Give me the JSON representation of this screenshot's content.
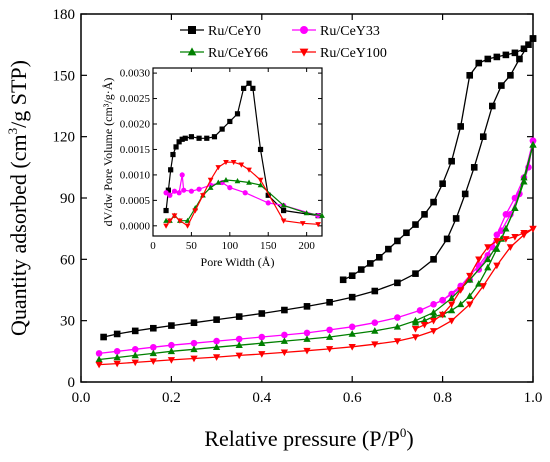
{
  "chart_data": [
    {
      "type": "line",
      "xlabel": "Relative pressure (P/P",
      "xlabel_sup": "0",
      "xlabel_close": ")",
      "ylabel": "Quantity adsorbed (cm",
      "ylabel_sup": "3",
      "ylabel_close": "/g STP)",
      "xlim": [
        0.0,
        1.0
      ],
      "ylim": [
        0,
        180
      ],
      "xticks": [
        "0.0",
        "0.2",
        "0.4",
        "0.6",
        "0.8",
        "1.0"
      ],
      "yticks": [
        "0",
        "30",
        "60",
        "90",
        "120",
        "150",
        "180"
      ],
      "legend_placement": "top-center",
      "series": [
        {
          "name": "Ru/CeY0",
          "color": "#000000",
          "marker": "square",
          "adsorption": [
            [
              0.05,
              22
            ],
            [
              0.08,
              23.5
            ],
            [
              0.12,
              25
            ],
            [
              0.16,
              26.3
            ],
            [
              0.2,
              27.6
            ],
            [
              0.25,
              29
            ],
            [
              0.3,
              30.5
            ],
            [
              0.35,
              32
            ],
            [
              0.4,
              33.5
            ],
            [
              0.45,
              35.2
            ],
            [
              0.5,
              37
            ],
            [
              0.55,
              39
            ],
            [
              0.6,
              41.5
            ],
            [
              0.65,
              44.5
            ],
            [
              0.7,
              48.5
            ],
            [
              0.74,
              53
            ],
            [
              0.78,
              60
            ],
            [
              0.81,
              70
            ],
            [
              0.83,
              80
            ],
            [
              0.85,
              92
            ],
            [
              0.87,
              105
            ],
            [
              0.89,
              120
            ],
            [
              0.91,
              135
            ],
            [
              0.93,
              145
            ],
            [
              0.95,
              150
            ],
            [
              0.97,
              158
            ],
            [
              0.99,
              165
            ],
            [
              1.0,
              168
            ]
          ],
          "desorption": [
            [
              1.0,
              168
            ],
            [
              0.98,
              163
            ],
            [
              0.96,
              161
            ],
            [
              0.94,
              160
            ],
            [
              0.92,
              159
            ],
            [
              0.9,
              158
            ],
            [
              0.88,
              156
            ],
            [
              0.86,
              150
            ],
            [
              0.84,
              125
            ],
            [
              0.82,
              108
            ],
            [
              0.8,
              97
            ],
            [
              0.78,
              88
            ],
            [
              0.76,
              82
            ],
            [
              0.74,
              77
            ],
            [
              0.72,
              73
            ],
            [
              0.7,
              69
            ],
            [
              0.68,
              65
            ],
            [
              0.66,
              61
            ],
            [
              0.64,
              58
            ],
            [
              0.62,
              55
            ],
            [
              0.6,
              52
            ],
            [
              0.58,
              50
            ]
          ]
        },
        {
          "name": "Ru/CeY33",
          "color": "#ff00ff",
          "marker": "circle",
          "adsorption": [
            [
              0.04,
              14
            ],
            [
              0.08,
              15
            ],
            [
              0.12,
              16
            ],
            [
              0.16,
              17
            ],
            [
              0.2,
              18
            ],
            [
              0.25,
              19
            ],
            [
              0.3,
              20
            ],
            [
              0.35,
              21
            ],
            [
              0.4,
              22
            ],
            [
              0.45,
              23
            ],
            [
              0.5,
              24
            ],
            [
              0.55,
              25.5
            ],
            [
              0.6,
              27
            ],
            [
              0.65,
              29
            ],
            [
              0.7,
              31.5
            ],
            [
              0.75,
              35
            ],
            [
              0.8,
              40
            ],
            [
              0.84,
              47
            ],
            [
              0.88,
              57
            ],
            [
              0.91,
              66
            ],
            [
              0.93,
              74
            ],
            [
              0.95,
              82
            ],
            [
              0.97,
              92
            ],
            [
              0.99,
              105
            ],
            [
              1.0,
              118
            ]
          ],
          "desorption": [
            [
              1.0,
              118
            ],
            [
              0.98,
              100
            ],
            [
              0.96,
              90
            ],
            [
              0.94,
              82
            ],
            [
              0.92,
              72
            ],
            [
              0.9,
              62
            ],
            [
              0.88,
              55
            ],
            [
              0.86,
              50
            ],
            [
              0.84,
              46
            ],
            [
              0.82,
              43
            ],
            [
              0.8,
              40
            ],
            [
              0.78,
              38
            ]
          ]
        },
        {
          "name": "Ru/CeY66",
          "color": "#008000",
          "marker": "triangle-up",
          "adsorption": [
            [
              0.04,
              11
            ],
            [
              0.08,
              12
            ],
            [
              0.12,
              13
            ],
            [
              0.16,
              14
            ],
            [
              0.2,
              15
            ],
            [
              0.25,
              16
            ],
            [
              0.3,
              17
            ],
            [
              0.35,
              18
            ],
            [
              0.4,
              19
            ],
            [
              0.45,
              20
            ],
            [
              0.5,
              21
            ],
            [
              0.55,
              22
            ],
            [
              0.6,
              23.5
            ],
            [
              0.65,
              25
            ],
            [
              0.7,
              27
            ],
            [
              0.74,
              30
            ],
            [
              0.78,
              34
            ],
            [
              0.82,
              41
            ],
            [
              0.86,
              50
            ],
            [
              0.9,
              60
            ],
            [
              0.93,
              70
            ],
            [
              0.96,
              85
            ],
            [
              0.98,
              100
            ],
            [
              1.0,
              116
            ]
          ],
          "desorption": [
            [
              1.0,
              116
            ],
            [
              0.98,
              98
            ],
            [
              0.96,
              85
            ],
            [
              0.94,
              75
            ],
            [
              0.92,
              65
            ],
            [
              0.9,
              56
            ],
            [
              0.88,
              48
            ],
            [
              0.86,
              42
            ],
            [
              0.84,
              38
            ],
            [
              0.82,
              35
            ],
            [
              0.8,
              33
            ],
            [
              0.78,
              32
            ],
            [
              0.76,
              30
            ],
            [
              0.74,
              29
            ]
          ]
        },
        {
          "name": "Ru/CeY100",
          "color": "#ff0000",
          "marker": "triangle-down",
          "adsorption": [
            [
              0.04,
              8.5
            ],
            [
              0.08,
              9
            ],
            [
              0.12,
              9.6
            ],
            [
              0.16,
              10.2
            ],
            [
              0.2,
              10.8
            ],
            [
              0.25,
              11.5
            ],
            [
              0.3,
              12.2
            ],
            [
              0.35,
              13
            ],
            [
              0.4,
              13.7
            ],
            [
              0.45,
              14.5
            ],
            [
              0.5,
              15.3
            ],
            [
              0.55,
              16.2
            ],
            [
              0.6,
              17.2
            ],
            [
              0.65,
              18.5
            ],
            [
              0.7,
              20
            ],
            [
              0.74,
              22
            ],
            [
              0.78,
              25
            ],
            [
              0.82,
              30
            ],
            [
              0.86,
              38
            ],
            [
              0.89,
              47
            ],
            [
              0.92,
              57
            ],
            [
              0.95,
              66
            ],
            [
              0.98,
              72
            ],
            [
              1.0,
              75
            ]
          ],
          "desorption": [
            [
              1.0,
              75
            ],
            [
              0.98,
              73
            ],
            [
              0.96,
              71
            ],
            [
              0.94,
              70
            ],
            [
              0.92,
              69
            ],
            [
              0.9,
              66
            ],
            [
              0.88,
              60
            ],
            [
              0.86,
              52
            ],
            [
              0.84,
              45
            ],
            [
              0.82,
              38
            ],
            [
              0.8,
              33
            ],
            [
              0.78,
              30
            ],
            [
              0.76,
              28
            ],
            [
              0.74,
              26
            ]
          ]
        }
      ]
    },
    {
      "type": "line",
      "xlabel": "Pore Width (Å)",
      "ylabel": "dV/dw Pore Volume (cm³/g·Å)",
      "xlim": [
        0,
        220
      ],
      "ylim": [
        -0.0002,
        0.0031
      ],
      "xticks": [
        "0",
        "50",
        "100",
        "150",
        "200"
      ],
      "yticks": [
        "0.0000",
        "0.0005",
        "0.0010",
        "0.0015",
        "0.0020",
        "0.0025",
        "0.0030"
      ],
      "series": [
        {
          "name": "Ru/CeY0",
          "color": "#000000",
          "marker": "square",
          "points": [
            [
              17,
              0.0003
            ],
            [
              20,
              0.0007
            ],
            [
              23,
              0.0011
            ],
            [
              26,
              0.0014
            ],
            [
              30,
              0.00155
            ],
            [
              34,
              0.00165
            ],
            [
              38,
              0.0017
            ],
            [
              42,
              0.00172
            ],
            [
              50,
              0.00175
            ],
            [
              60,
              0.00172
            ],
            [
              70,
              0.00172
            ],
            [
              80,
              0.00175
            ],
            [
              90,
              0.0019
            ],
            [
              100,
              0.00205
            ],
            [
              110,
              0.0022
            ],
            [
              118,
              0.0027
            ],
            [
              125,
              0.0028
            ],
            [
              130,
              0.0027
            ],
            [
              140,
              0.0015
            ],
            [
              150,
              0.0006
            ],
            [
              170,
              0.0003
            ],
            [
              215,
              0.0002
            ]
          ]
        },
        {
          "name": "Ru/CeY33",
          "color": "#ff00ff",
          "marker": "circle",
          "points": [
            [
              17,
              0.00065
            ],
            [
              22,
              0.0006
            ],
            [
              28,
              0.00068
            ],
            [
              34,
              0.00065
            ],
            [
              38,
              0.001
            ],
            [
              40,
              0.0007
            ],
            [
              50,
              0.00068
            ],
            [
              60,
              0.00072
            ],
            [
              75,
              0.0008
            ],
            [
              90,
              0.00085
            ],
            [
              100,
              0.00075
            ],
            [
              120,
              0.00065
            ],
            [
              150,
              0.00045
            ],
            [
              170,
              0.0004
            ],
            [
              215,
              0.0002
            ]
          ]
        },
        {
          "name": "Ru/CeY66",
          "color": "#008000",
          "marker": "triangle-up",
          "points": [
            [
              17,
              0.0001
            ],
            [
              22,
              0.0001
            ],
            [
              28,
              0.0002
            ],
            [
              35,
              0.0001
            ],
            [
              45,
              0.0001
            ],
            [
              55,
              0.00035
            ],
            [
              65,
              0.0006
            ],
            [
              75,
              0.00075
            ],
            [
              85,
              0.00085
            ],
            [
              95,
              0.0009
            ],
            [
              110,
              0.00088
            ],
            [
              125,
              0.00085
            ],
            [
              140,
              0.0008
            ],
            [
              170,
              0.0004
            ],
            [
              200,
              0.00025
            ],
            [
              220,
              0.0002
            ]
          ]
        },
        {
          "name": "Ru/CeY100",
          "color": "#ff0000",
          "marker": "triangle-down",
          "points": [
            [
              17,
              0.0
            ],
            [
              22,
              0.0001
            ],
            [
              28,
              0.0002
            ],
            [
              35,
              0.0001
            ],
            [
              45,
              0.0
            ],
            [
              55,
              0.0003
            ],
            [
              65,
              0.0006
            ],
            [
              75,
              0.0009
            ],
            [
              85,
              0.00115
            ],
            [
              95,
              0.00125
            ],
            [
              105,
              0.00125
            ],
            [
              115,
              0.0012
            ],
            [
              125,
              0.0011
            ],
            [
              140,
              0.0009
            ],
            [
              170,
              0.0001
            ],
            [
              195,
              5e-05
            ],
            [
              215,
              3e-05
            ]
          ]
        }
      ]
    }
  ]
}
